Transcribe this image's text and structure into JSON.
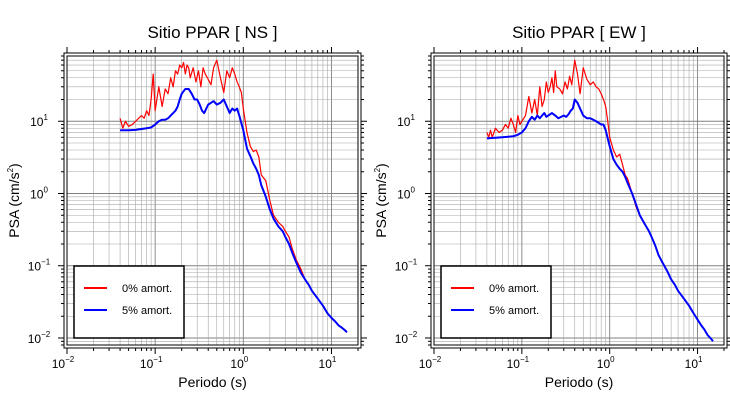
{
  "chart_data": [
    {
      "type": "line",
      "title": "Sitio PPAR [ NS ]",
      "xlabel": "Periodo (s)",
      "ylabel_main": "PSA (cm/s",
      "ylabel_sup": "2",
      "ylabel_tail": ")",
      "xscale": "log",
      "yscale": "log",
      "xlim": [
        0.01,
        20
      ],
      "ylim": [
        0.008,
        80
      ],
      "grid": true,
      "legend_position": "bottom-left",
      "x_tick_labels": [
        {
          "value": 0.01,
          "base": "10",
          "exp": "−2"
        },
        {
          "value": 0.1,
          "base": "10",
          "exp": "−1"
        },
        {
          "value": 1,
          "base": "10",
          "exp": "0"
        },
        {
          "value": 10,
          "base": "10",
          "exp": "1"
        }
      ],
      "y_tick_labels": [
        {
          "value": 0.01,
          "base": "10",
          "exp": "−2"
        },
        {
          "value": 0.1,
          "base": "10",
          "exp": "−1"
        },
        {
          "value": 1,
          "base": "10",
          "exp": "0"
        },
        {
          "value": 10,
          "base": "10",
          "exp": "1"
        }
      ],
      "series": [
        {
          "name": "0% amort.",
          "color": "#ff0000",
          "x": [
            0.04,
            0.043,
            0.046,
            0.05,
            0.055,
            0.06,
            0.065,
            0.07,
            0.075,
            0.08,
            0.085,
            0.09,
            0.095,
            0.1,
            0.11,
            0.12,
            0.13,
            0.14,
            0.15,
            0.16,
            0.17,
            0.18,
            0.19,
            0.2,
            0.21,
            0.22,
            0.23,
            0.24,
            0.25,
            0.27,
            0.29,
            0.31,
            0.33,
            0.35,
            0.37,
            0.4,
            0.43,
            0.46,
            0.5,
            0.55,
            0.6,
            0.65,
            0.7,
            0.75,
            0.8,
            0.85,
            0.9,
            0.95,
            1.0,
            1.1,
            1.2,
            1.3,
            1.4,
            1.5,
            1.6,
            1.8,
            2.0,
            2.2,
            2.5,
            2.8,
            3.0,
            3.3,
            3.6,
            4.0,
            4.5,
            5.0,
            5.5,
            6.0,
            7.0,
            8.0,
            9.0,
            10.0,
            11.0,
            12.0,
            13.0,
            14.0,
            15.0
          ],
          "y": [
            11,
            8,
            10,
            8.5,
            9,
            10,
            11,
            12,
            11,
            14,
            12,
            20,
            45,
            14,
            30,
            16,
            28,
            24,
            40,
            30,
            50,
            45,
            60,
            55,
            65,
            45,
            60,
            55,
            40,
            55,
            35,
            50,
            30,
            55,
            45,
            38,
            32,
            55,
            70,
            40,
            25,
            50,
            40,
            55,
            45,
            35,
            30,
            25,
            15,
            7,
            4.5,
            3.8,
            4,
            3.2,
            1.8,
            1.5,
            0.8,
            0.5,
            0.4,
            0.35,
            0.3,
            0.25,
            0.17,
            0.12,
            0.09,
            0.065,
            0.055,
            0.045,
            0.035,
            0.028,
            0.022,
            0.019,
            0.017,
            0.015,
            0.014,
            0.013,
            0.012
          ]
        },
        {
          "name": "5% amort.",
          "color": "#0000ff",
          "x": [
            0.04,
            0.05,
            0.06,
            0.07,
            0.08,
            0.09,
            0.1,
            0.11,
            0.12,
            0.13,
            0.14,
            0.15,
            0.16,
            0.17,
            0.18,
            0.19,
            0.2,
            0.22,
            0.24,
            0.26,
            0.28,
            0.3,
            0.32,
            0.34,
            0.36,
            0.38,
            0.4,
            0.43,
            0.46,
            0.5,
            0.55,
            0.6,
            0.65,
            0.7,
            0.75,
            0.8,
            0.85,
            0.9,
            1.0,
            1.1,
            1.2,
            1.3,
            1.4,
            1.5,
            1.6,
            1.8,
            2.0,
            2.2,
            2.5,
            2.8,
            3.0,
            3.3,
            3.6,
            4.0,
            4.5,
            5.0,
            5.5,
            6.0,
            7.0,
            8.0,
            9.0,
            10.0,
            11.0,
            12.0,
            13.0,
            14.0,
            15.0
          ],
          "y": [
            7.5,
            7.5,
            7.6,
            7.8,
            8.0,
            8.2,
            9.0,
            10.0,
            10.5,
            10.5,
            11.0,
            12.0,
            13.0,
            14.0,
            16.0,
            20.0,
            24.0,
            28.0,
            28.0,
            24.0,
            20.0,
            20.0,
            17.0,
            14.0,
            13.0,
            15.0,
            17.0,
            18.0,
            19.0,
            17.0,
            18.0,
            20.0,
            16.0,
            13.0,
            15.0,
            14.0,
            15.0,
            12.0,
            7.5,
            4.2,
            3.3,
            2.6,
            2.2,
            1.8,
            1.3,
            0.9,
            0.6,
            0.45,
            0.35,
            0.3,
            0.25,
            0.2,
            0.15,
            0.11,
            0.08,
            0.065,
            0.055,
            0.045,
            0.035,
            0.028,
            0.022,
            0.019,
            0.017,
            0.015,
            0.014,
            0.013,
            0.012
          ]
        }
      ]
    },
    {
      "type": "line",
      "title": "Sitio PPAR [ EW ]",
      "xlabel": "Periodo (s)",
      "ylabel_main": "PSA (cm/s",
      "ylabel_sup": "2",
      "ylabel_tail": ")",
      "xscale": "log",
      "yscale": "log",
      "xlim": [
        0.01,
        20
      ],
      "ylim": [
        0.008,
        80
      ],
      "grid": true,
      "legend_position": "bottom-left",
      "x_tick_labels": [
        {
          "value": 0.01,
          "base": "10",
          "exp": "−2"
        },
        {
          "value": 0.1,
          "base": "10",
          "exp": "−1"
        },
        {
          "value": 1,
          "base": "10",
          "exp": "0"
        },
        {
          "value": 10,
          "base": "10",
          "exp": "1"
        }
      ],
      "y_tick_labels": [
        {
          "value": 0.01,
          "base": "10",
          "exp": "−2"
        },
        {
          "value": 0.1,
          "base": "10",
          "exp": "−1"
        },
        {
          "value": 1,
          "base": "10",
          "exp": "0"
        },
        {
          "value": 10,
          "base": "10",
          "exp": "1"
        }
      ],
      "series": [
        {
          "name": "0% amort.",
          "color": "#ff0000",
          "x": [
            0.04,
            0.042,
            0.044,
            0.046,
            0.05,
            0.055,
            0.06,
            0.065,
            0.07,
            0.075,
            0.08,
            0.085,
            0.09,
            0.095,
            0.1,
            0.11,
            0.12,
            0.13,
            0.14,
            0.15,
            0.16,
            0.17,
            0.18,
            0.19,
            0.2,
            0.21,
            0.22,
            0.23,
            0.24,
            0.25,
            0.27,
            0.29,
            0.31,
            0.33,
            0.35,
            0.37,
            0.4,
            0.43,
            0.46,
            0.5,
            0.55,
            0.6,
            0.65,
            0.7,
            0.75,
            0.8,
            0.85,
            0.9,
            0.95,
            1.0,
            1.1,
            1.2,
            1.3,
            1.4,
            1.5,
            1.6,
            1.8,
            2.0,
            2.2,
            2.5,
            2.8,
            3.0,
            3.3,
            3.6,
            4.0,
            4.5,
            5.0,
            5.5,
            6.0,
            7.0,
            8.0,
            9.0,
            10.0,
            11.0,
            12.0,
            13.0,
            14.0,
            15.0
          ],
          "y": [
            7,
            6,
            7.5,
            6,
            8,
            7,
            7.5,
            9,
            8,
            11,
            9,
            7,
            12,
            9,
            10,
            12,
            22,
            13,
            20,
            12,
            30,
            16,
            20,
            35,
            25,
            30,
            40,
            25,
            50,
            30,
            28,
            24,
            35,
            28,
            42,
            32,
            70,
            45,
            24,
            55,
            38,
            32,
            35,
            30,
            28,
            24,
            20,
            16,
            10,
            6,
            4,
            3.2,
            3.5,
            2.5,
            1.8,
            1.6,
            1.0,
            0.65,
            0.5,
            0.38,
            0.3,
            0.25,
            0.19,
            0.14,
            0.11,
            0.085,
            0.065,
            0.055,
            0.045,
            0.035,
            0.028,
            0.022,
            0.018,
            0.015,
            0.013,
            0.011,
            0.01,
            0.009
          ]
        },
        {
          "name": "5% amort.",
          "color": "#0000ff",
          "x": [
            0.04,
            0.05,
            0.06,
            0.07,
            0.08,
            0.09,
            0.1,
            0.11,
            0.12,
            0.13,
            0.14,
            0.15,
            0.16,
            0.17,
            0.18,
            0.19,
            0.2,
            0.22,
            0.24,
            0.26,
            0.28,
            0.3,
            0.32,
            0.34,
            0.36,
            0.38,
            0.4,
            0.43,
            0.46,
            0.5,
            0.55,
            0.6,
            0.65,
            0.7,
            0.75,
            0.8,
            0.85,
            0.9,
            1.0,
            1.1,
            1.2,
            1.3,
            1.4,
            1.5,
            1.6,
            1.8,
            2.0,
            2.2,
            2.5,
            2.8,
            3.0,
            3.3,
            3.6,
            4.0,
            4.5,
            5.0,
            5.5,
            6.0,
            7.0,
            8.0,
            9.0,
            10.0,
            11.0,
            12.0,
            13.0,
            14.0,
            15.0
          ],
          "y": [
            5.8,
            5.9,
            6.0,
            6.1,
            6.2,
            6.5,
            7.0,
            8.0,
            10.0,
            11.5,
            10.5,
            12.0,
            11.0,
            12.0,
            13.0,
            11.5,
            12.0,
            13.0,
            12.0,
            11.0,
            11.5,
            12.0,
            11.5,
            12.5,
            14.0,
            15.0,
            20.0,
            18.0,
            15.0,
            12.0,
            11.0,
            11.0,
            10.5,
            10.0,
            9.5,
            9.0,
            9.0,
            7.5,
            4.5,
            3.0,
            2.5,
            2.2,
            2.0,
            1.7,
            1.4,
            1.0,
            0.7,
            0.5,
            0.38,
            0.3,
            0.25,
            0.19,
            0.14,
            0.11,
            0.085,
            0.065,
            0.055,
            0.045,
            0.035,
            0.028,
            0.022,
            0.018,
            0.015,
            0.013,
            0.011,
            0.01,
            0.009
          ]
        }
      ]
    }
  ]
}
